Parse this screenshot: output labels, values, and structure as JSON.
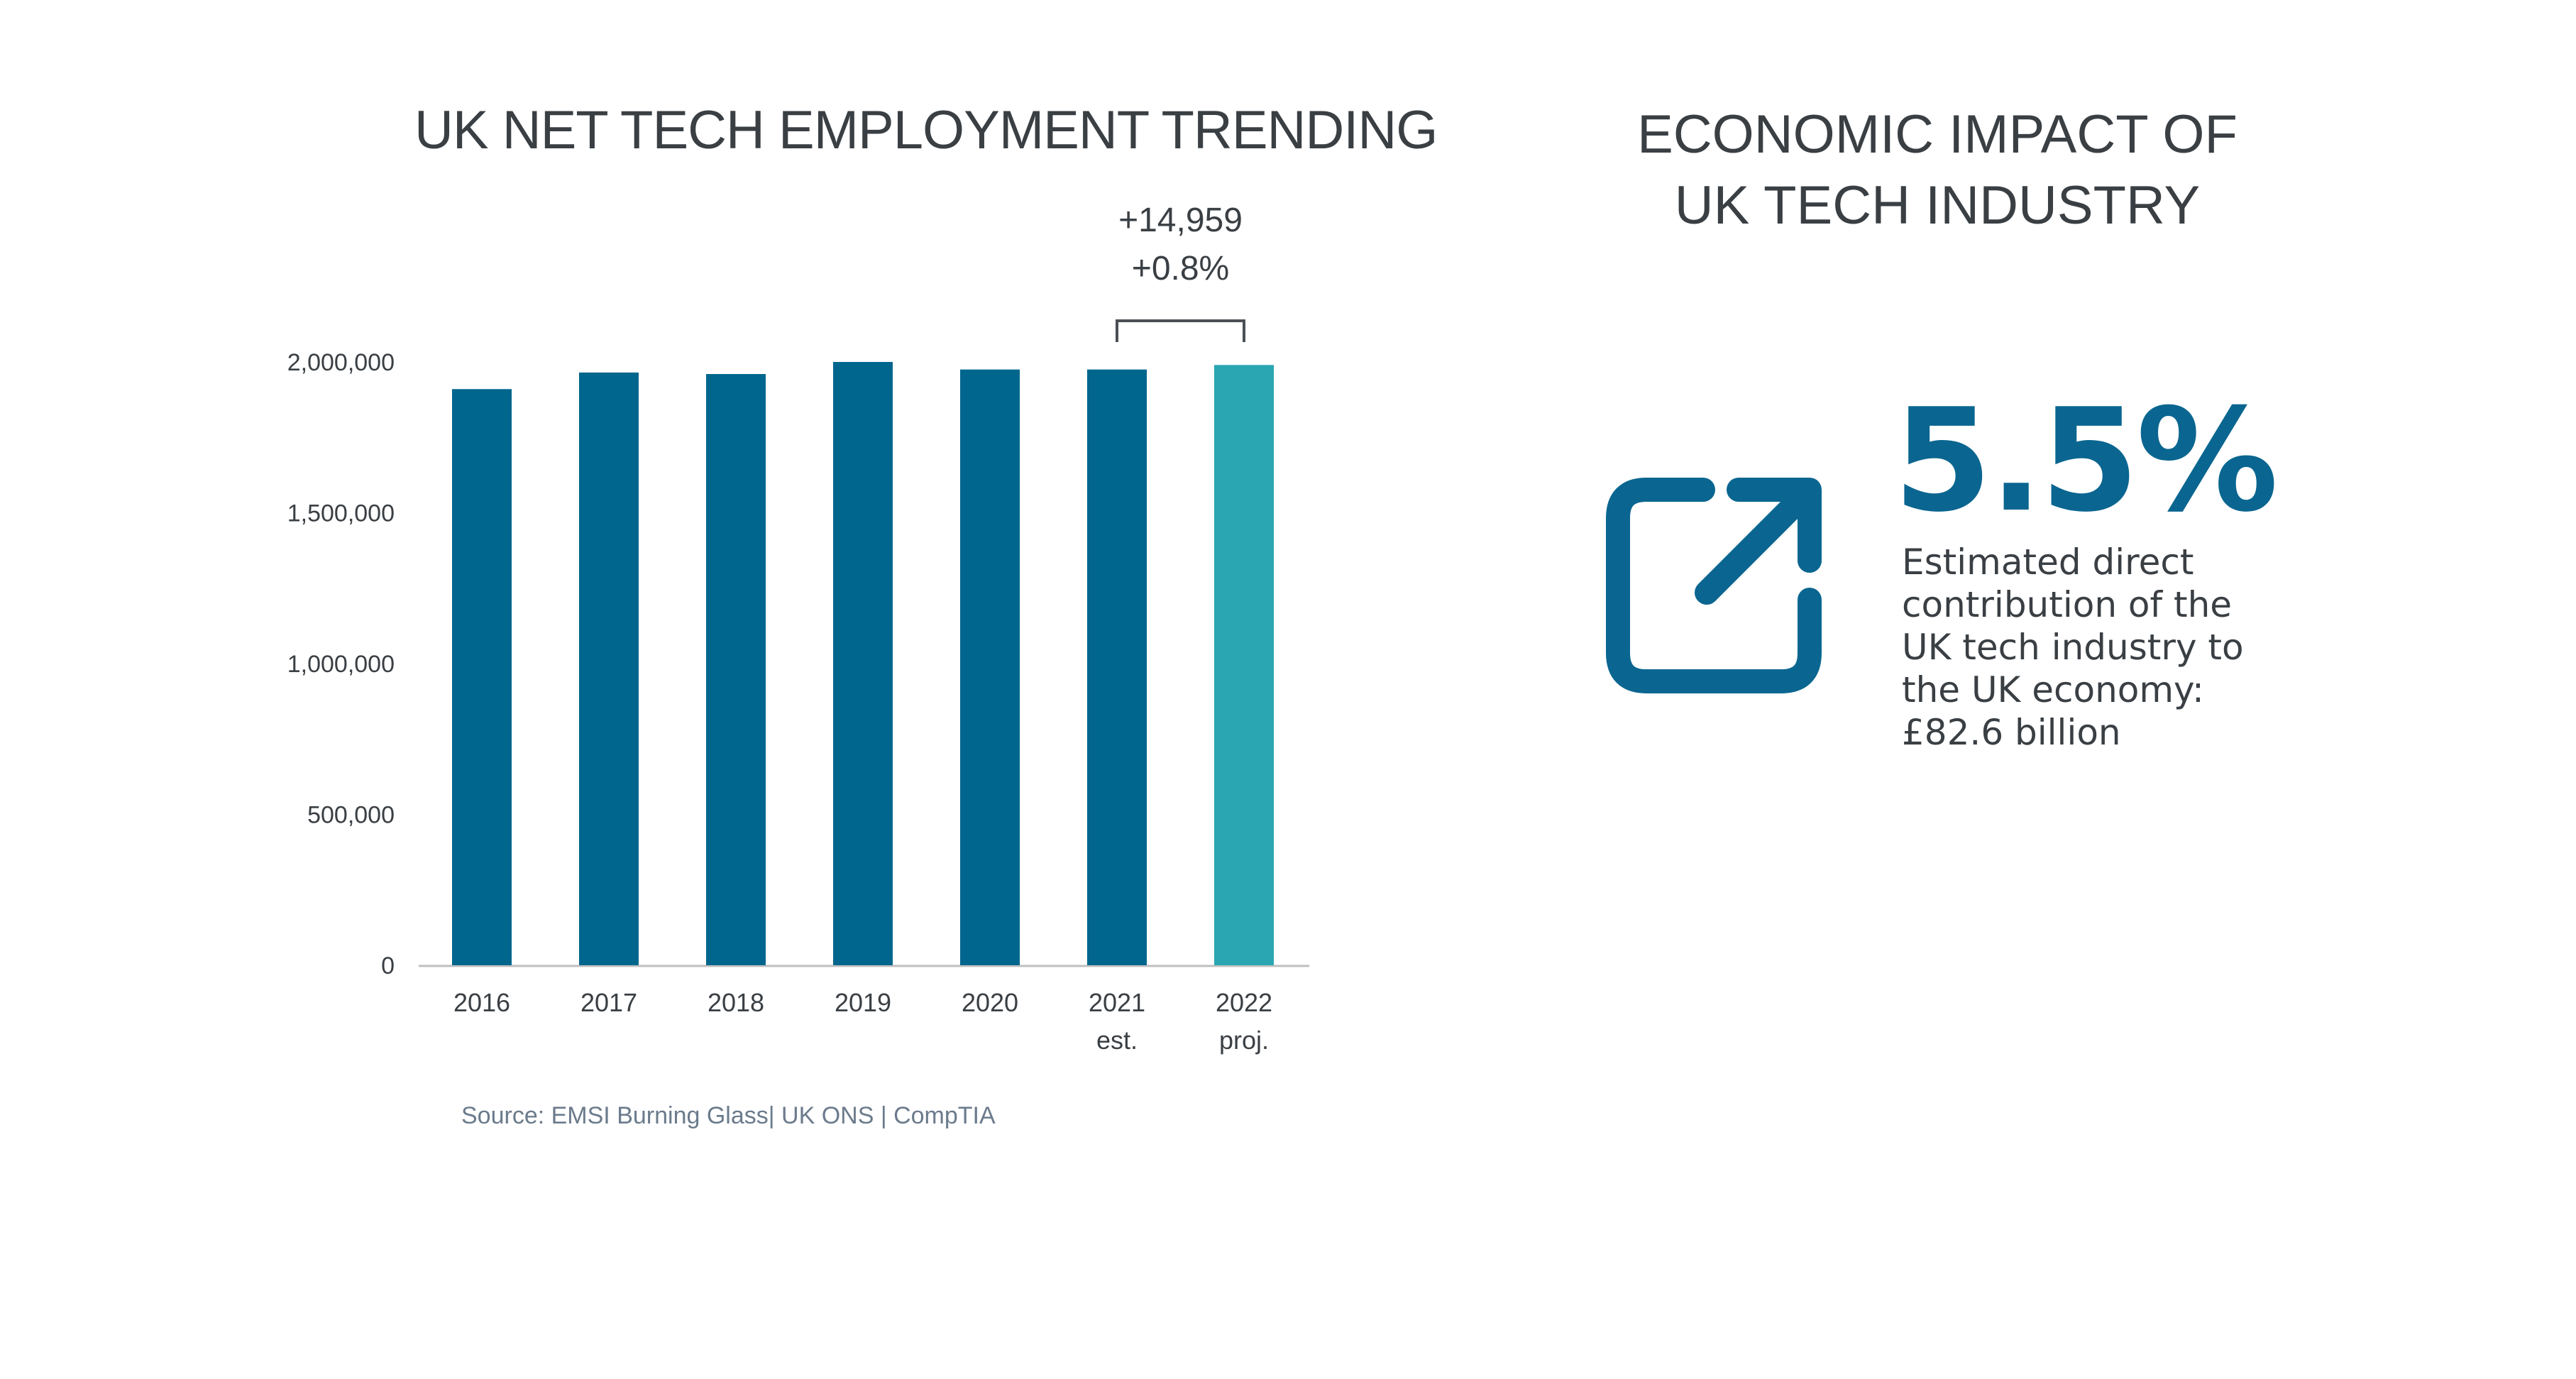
{
  "left_panel": {
    "source": "Source: EMSI Burning Glass| UK ONS | CompTIA"
  },
  "chart_data": {
    "type": "bar",
    "title": "UK NET TECH EMPLOYMENT TRENDING",
    "categories": [
      "2016",
      "2017",
      "2018",
      "2019",
      "2020",
      "2021",
      "2022"
    ],
    "category_sublabels": [
      "",
      "",
      "",
      "",
      "",
      "est.",
      "proj."
    ],
    "values": [
      1910000,
      1965000,
      1960000,
      2000000,
      1975000,
      1975000,
      1990000
    ],
    "bar_colors": [
      "#00668e",
      "#00668e",
      "#00668e",
      "#00668e",
      "#00668e",
      "#00668e",
      "#29a6b2"
    ],
    "ylim": [
      0,
      2000000
    ],
    "yticks": [
      0,
      500000,
      1000000,
      1500000,
      2000000
    ],
    "ytick_labels": [
      "0",
      "500,000",
      "1,000,000",
      "1,500,000",
      "2,000,000"
    ],
    "xlabel": "",
    "ylabel": "",
    "grid": false,
    "annotation": {
      "line1": "+14,959",
      "line2": "+0.8%",
      "from_category": "2021",
      "to_category": "2022"
    }
  },
  "right_panel": {
    "title_line1": "ECONOMIC IMPACT OF",
    "title_line2": "UK TECH INDUSTRY",
    "icon": "external-link-icon",
    "accent_color": "#0a6690",
    "stat_value": "5.5%",
    "description_lines": [
      "Estimated direct",
      "contribution of the",
      "UK tech industry to",
      "the UK economy:",
      "£82.6 billion"
    ]
  }
}
